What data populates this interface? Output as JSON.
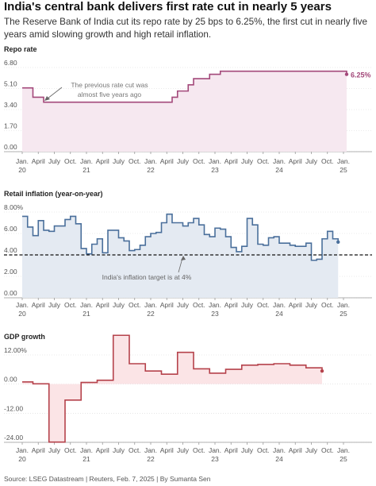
{
  "header": {
    "title": "India's central bank delivers first rate cut in nearly 5 years",
    "subtitle": "The Reserve Bank of India cut its repo rate by 25 bps to 6.25%, the first cut in nearly five years amid slowing growth and high retail inflation."
  },
  "source": "Source: LSEG Datastream | Reuters, Feb. 7, 2025 | By Sumanta Sen",
  "colors": {
    "repo": "#a3487a",
    "repo_fill": "#f6e8f0",
    "inflation": "#4a6f9b",
    "inflation_fill": "#e4eaf2",
    "gdp": "#b5424b",
    "gdp_fill": "#fbe4e6",
    "axis": "#999999"
  },
  "x_axis": {
    "months": [
      "Jan.",
      "April",
      "July",
      "Oct."
    ],
    "years": [
      "20",
      "21",
      "22",
      "23",
      "24",
      "25"
    ],
    "range": [
      "2020-01",
      "2025-02"
    ]
  },
  "chart_data": [
    {
      "type": "line",
      "title": "Repo rate",
      "ylim": [
        0,
        6.8
      ],
      "yticks": [
        "0.00",
        "1.70",
        "3.40",
        "5.10",
        "6.80"
      ],
      "end_label": "6.25%",
      "annotation": "The previous rate cut was almost five years ago",
      "series": [
        {
          "x": [
            "2020-01",
            "2020-03",
            "2020-05",
            "2022-05",
            "2022-06",
            "2022-08",
            "2022-09",
            "2022-12",
            "2023-02",
            "2025-02"
          ],
          "values": [
            5.15,
            4.4,
            4.0,
            4.4,
            4.9,
            5.4,
            5.9,
            6.25,
            6.5,
            6.25
          ]
        }
      ]
    },
    {
      "type": "line",
      "title": "Retail inflation (year-on-year)",
      "ylim": [
        0,
        8
      ],
      "yticks": [
        "0.00",
        "2.00",
        "4.00",
        "6.00",
        "8.00%"
      ],
      "reference_line": 4,
      "annotation": "India's inflation target is at 4%",
      "series": [
        {
          "x": [
            "2020-01",
            "2020-02",
            "2020-03",
            "2020-04",
            "2020-05",
            "2020-06",
            "2020-07",
            "2020-08",
            "2020-09",
            "2020-10",
            "2020-11",
            "2020-12",
            "2021-01",
            "2021-02",
            "2021-03",
            "2021-04",
            "2021-05",
            "2021-06",
            "2021-07",
            "2021-08",
            "2021-09",
            "2021-10",
            "2021-11",
            "2021-12",
            "2022-01",
            "2022-02",
            "2022-03",
            "2022-04",
            "2022-05",
            "2022-06",
            "2022-07",
            "2022-08",
            "2022-09",
            "2022-10",
            "2022-11",
            "2022-12",
            "2023-01",
            "2023-02",
            "2023-03",
            "2023-04",
            "2023-05",
            "2023-06",
            "2023-07",
            "2023-08",
            "2023-09",
            "2023-10",
            "2023-11",
            "2023-12",
            "2024-01",
            "2024-02",
            "2024-03",
            "2024-04",
            "2024-05",
            "2024-06",
            "2024-07",
            "2024-08",
            "2024-09",
            "2024-10",
            "2024-11",
            "2024-12"
          ],
          "values": [
            7.6,
            6.6,
            5.8,
            7.2,
            6.3,
            6.2,
            6.7,
            6.7,
            7.3,
            7.6,
            6.9,
            4.6,
            4.1,
            5.0,
            5.5,
            4.2,
            6.3,
            6.3,
            5.6,
            5.3,
            4.4,
            4.5,
            4.9,
            5.7,
            6.0,
            6.1,
            7.0,
            7.8,
            7.0,
            7.0,
            6.7,
            7.0,
            7.4,
            6.8,
            5.9,
            5.7,
            6.5,
            6.4,
            5.7,
            4.7,
            4.3,
            4.8,
            7.4,
            6.8,
            5.0,
            4.9,
            5.6,
            5.7,
            5.1,
            5.1,
            4.9,
            4.8,
            4.8,
            5.1,
            3.5,
            3.6,
            5.5,
            6.2,
            5.5,
            5.2
          ]
        }
      ]
    },
    {
      "type": "line",
      "title": "GDP growth",
      "ylim": [
        -24,
        12
      ],
      "yticks": [
        "-24.00",
        "-12.00",
        "0.00",
        "12.00%"
      ],
      "series": [
        {
          "x": [
            "2019-12",
            "2020-03",
            "2020-06",
            "2020-09",
            "2020-12",
            "2021-03",
            "2021-06",
            "2021-09",
            "2021-12",
            "2022-03",
            "2022-06",
            "2022-09",
            "2022-12",
            "2023-03",
            "2023-06",
            "2023-09",
            "2023-12",
            "2024-03",
            "2024-06",
            "2024-09"
          ],
          "values": [
            0.9,
            0.1,
            -23.9,
            -6.6,
            0.7,
            1.6,
            20.1,
            8.4,
            5.4,
            4.1,
            13.1,
            6.3,
            4.5,
            6.1,
            7.8,
            8.1,
            8.4,
            7.8,
            6.7,
            5.4
          ]
        }
      ]
    }
  ]
}
